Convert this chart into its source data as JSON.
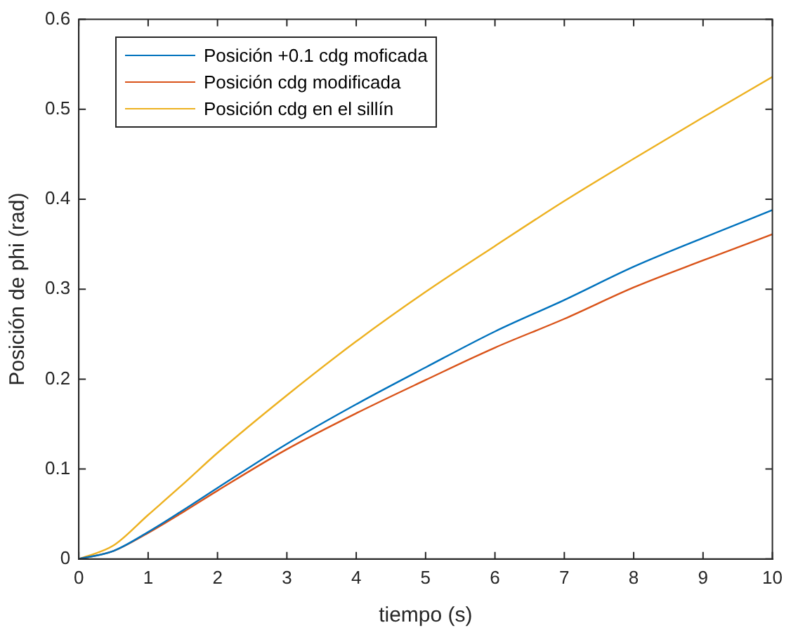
{
  "chart_data": {
    "type": "line",
    "xlabel": "tiempo (s)",
    "ylabel": "Posición de phi (rad)",
    "x": [
      0,
      0.5,
      1,
      1.5,
      2,
      3,
      4,
      5,
      6,
      7,
      8,
      9,
      10
    ],
    "xlim": [
      0,
      10
    ],
    "xticks": [
      0,
      1,
      2,
      3,
      4,
      5,
      6,
      7,
      8,
      9,
      10
    ],
    "ylim": [
      0,
      0.6
    ],
    "yticks": [
      0,
      0.1,
      0.2,
      0.3,
      0.4,
      0.5,
      0.6
    ],
    "grid": false,
    "legend": "top left",
    "marker": "none",
    "line_style": "solid",
    "series": [
      {
        "name": "Posición +0.1 cdg moficada",
        "color": "#0072bd",
        "values": [
          0,
          0.009,
          0.03,
          0.054,
          0.079,
          0.128,
          0.172,
          0.213,
          0.253,
          0.288,
          0.325,
          0.357,
          0.388
        ]
      },
      {
        "name": "Posición cdg modificada",
        "color": "#d95319",
        "values": [
          0,
          0.009,
          0.029,
          0.052,
          0.076,
          0.122,
          0.162,
          0.199,
          0.235,
          0.267,
          0.302,
          0.332,
          0.361
        ]
      },
      {
        "name": "Posición cdg en el sillín",
        "color": "#edb120",
        "values": [
          0,
          0.015,
          0.049,
          0.083,
          0.118,
          0.182,
          0.242,
          0.297,
          0.348,
          0.398,
          0.445,
          0.491,
          0.536
        ]
      }
    ]
  }
}
